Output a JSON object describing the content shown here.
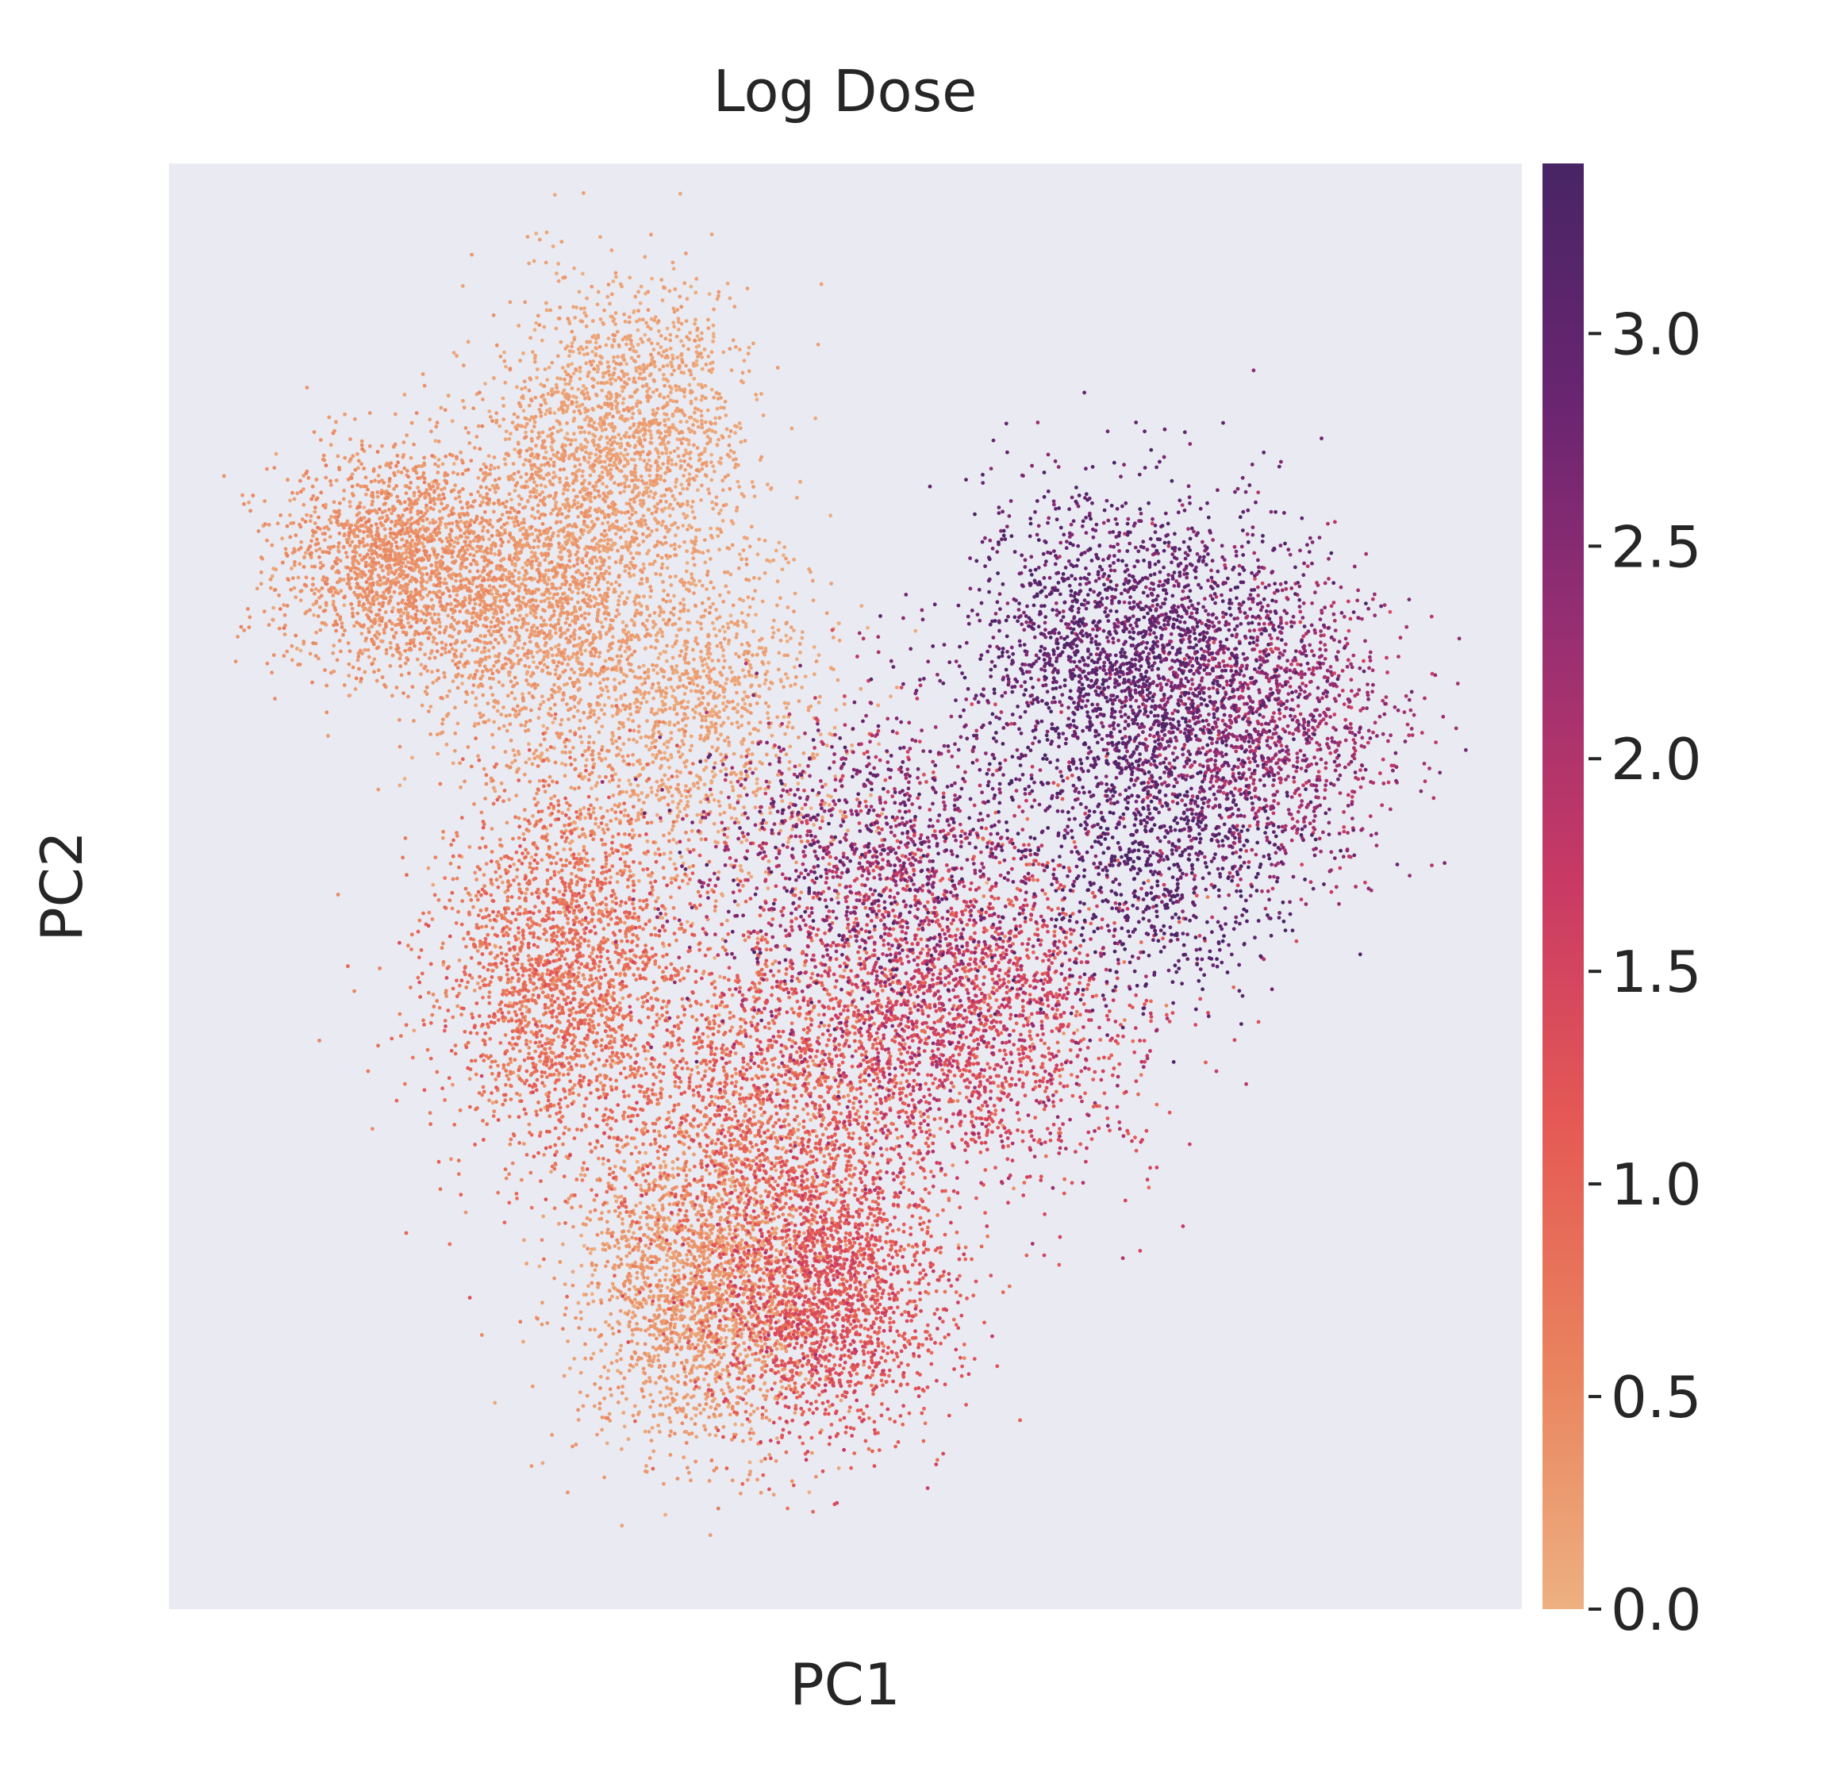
{
  "chart_data": {
    "type": "scatter",
    "title": "Log Dose",
    "xlabel": "PC1",
    "ylabel": "PC2",
    "grid": false,
    "xticks_shown": false,
    "yticks_shown": false,
    "background_color": "#eaeaf2",
    "colormap": "flare",
    "colormap_stops": [
      "#edb081",
      "#e9835e",
      "#e55a55",
      "#c93a64",
      "#9a2f72",
      "#6a2571",
      "#482565"
    ],
    "colorbar": {
      "label": "",
      "range": [
        0.0,
        3.4
      ],
      "ticks": [
        0.0,
        0.5,
        1.0,
        1.5,
        2.0,
        2.5,
        3.0
      ],
      "tick_labels": [
        "0.0",
        "0.5",
        "1.0",
        "1.5",
        "2.0",
        "2.5",
        "3.0"
      ]
    },
    "xlim": [
      -1.0,
      1.0
    ],
    "ylim": [
      -1.0,
      1.0
    ],
    "clusters": [
      {
        "x": -0.66,
        "y": 0.45,
        "sx": 0.09,
        "sy": 0.08,
        "n": 1800,
        "dose": 0.35,
        "dose_sd": 0.12
      },
      {
        "x": -0.44,
        "y": 0.4,
        "sx": 0.09,
        "sy": 0.13,
        "n": 2000,
        "dose": 0.25,
        "dose_sd": 0.1
      },
      {
        "x": -0.32,
        "y": 0.64,
        "sx": 0.09,
        "sy": 0.1,
        "n": 1500,
        "dose": 0.15,
        "dose_sd": 0.08
      },
      {
        "x": -0.21,
        "y": 0.25,
        "sx": 0.1,
        "sy": 0.12,
        "n": 1200,
        "dose": 0.15,
        "dose_sd": 0.08
      },
      {
        "x": -0.42,
        "y": -0.12,
        "sx": 0.09,
        "sy": 0.13,
        "n": 2200,
        "dose": 0.75,
        "dose_sd": 0.25
      },
      {
        "x": -0.12,
        "y": -0.3,
        "sx": 0.12,
        "sy": 0.13,
        "n": 1700,
        "dose": 0.85,
        "dose_sd": 0.3
      },
      {
        "x": -0.22,
        "y": -0.56,
        "sx": 0.09,
        "sy": 0.11,
        "n": 2000,
        "dose": 0.25,
        "dose_sd": 0.12
      },
      {
        "x": -0.03,
        "y": -0.56,
        "sx": 0.09,
        "sy": 0.1,
        "n": 1900,
        "dose": 1.2,
        "dose_sd": 0.25
      },
      {
        "x": 0.16,
        "y": -0.18,
        "sx": 0.14,
        "sy": 0.12,
        "n": 2300,
        "dose": 1.45,
        "dose_sd": 0.4
      },
      {
        "x": 0.04,
        "y": 0.04,
        "sx": 0.13,
        "sy": 0.11,
        "n": 1300,
        "dose": 2.3,
        "dose_sd": 0.5
      },
      {
        "x": 0.42,
        "y": 0.33,
        "sx": 0.12,
        "sy": 0.11,
        "n": 2100,
        "dose": 2.9,
        "dose_sd": 0.3
      },
      {
        "x": 0.62,
        "y": 0.22,
        "sx": 0.1,
        "sy": 0.1,
        "n": 1400,
        "dose": 2.2,
        "dose_sd": 0.3
      },
      {
        "x": 0.45,
        "y": 0.05,
        "sx": 0.1,
        "sy": 0.1,
        "n": 900,
        "dose": 3.1,
        "dose_sd": 0.25
      }
    ]
  }
}
